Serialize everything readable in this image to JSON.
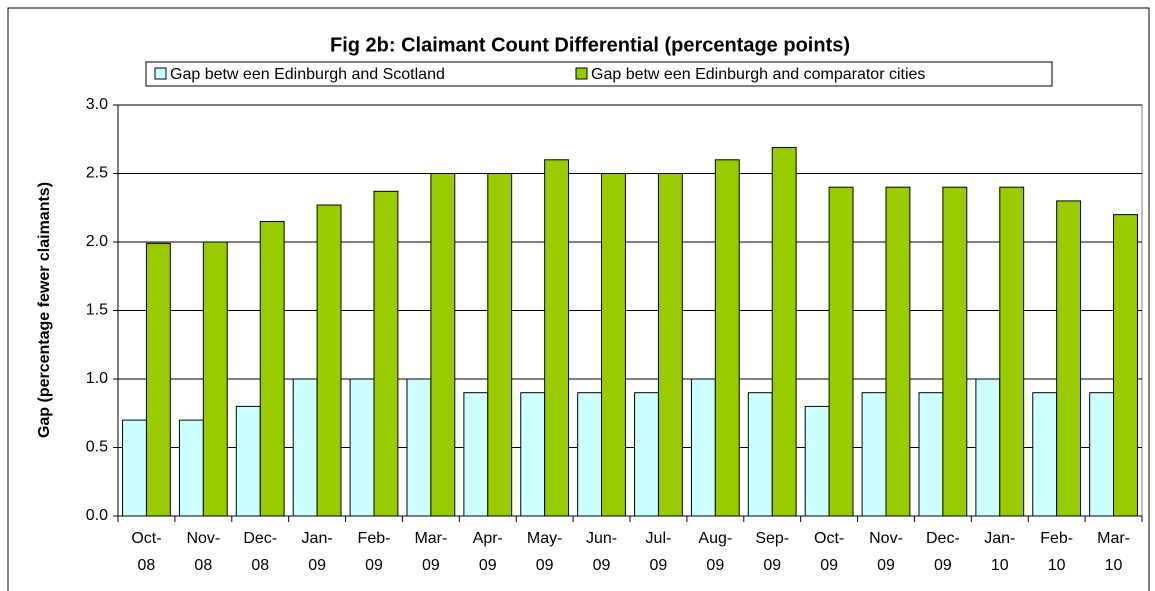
{
  "chart_data": {
    "type": "bar",
    "title": "Fig 2b: Claimant Count Differential (percentage points)",
    "y_label": "Gap (percentage fewer claimants)",
    "categories": [
      "Oct-08",
      "Nov-08",
      "Dec-08",
      "Jan-09",
      "Feb-09",
      "Mar-09",
      "Apr-09",
      "May-09",
      "Jun-09",
      "Jul-09",
      "Aug-09",
      "Sep-09",
      "Oct-09",
      "Nov-09",
      "Dec-09",
      "Jan-10",
      "Feb-10",
      "Mar-10"
    ],
    "series": [
      {
        "name": "Gap betw een Edinburgh and Scotland",
        "color": "#ccffff",
        "values": [
          0.7,
          0.7,
          0.8,
          1.0,
          1.0,
          1.0,
          0.9,
          0.9,
          0.9,
          0.9,
          1.0,
          0.9,
          0.8,
          0.9,
          0.9,
          1.0,
          0.9,
          0.9
        ]
      },
      {
        "name": "Gap betw een Edinburgh and comparator cities",
        "color": "#99cc00",
        "values": [
          1.99,
          2.0,
          2.15,
          2.27,
          2.37,
          2.5,
          2.5,
          2.6,
          2.5,
          2.5,
          2.6,
          2.69,
          2.4,
          2.4,
          2.4,
          2.4,
          2.3,
          2.2
        ]
      }
    ],
    "ylim": [
      0,
      3
    ],
    "yticks": [
      {
        "value": 0,
        "label": "0.0"
      },
      0.5,
      {
        "value": 1,
        "label": "1.0"
      },
      1.5,
      {
        "value": 2,
        "label": "2.0"
      },
      2.5,
      {
        "value": 3,
        "label": "3.0"
      }
    ],
    "grid": true,
    "legend": "top"
  }
}
